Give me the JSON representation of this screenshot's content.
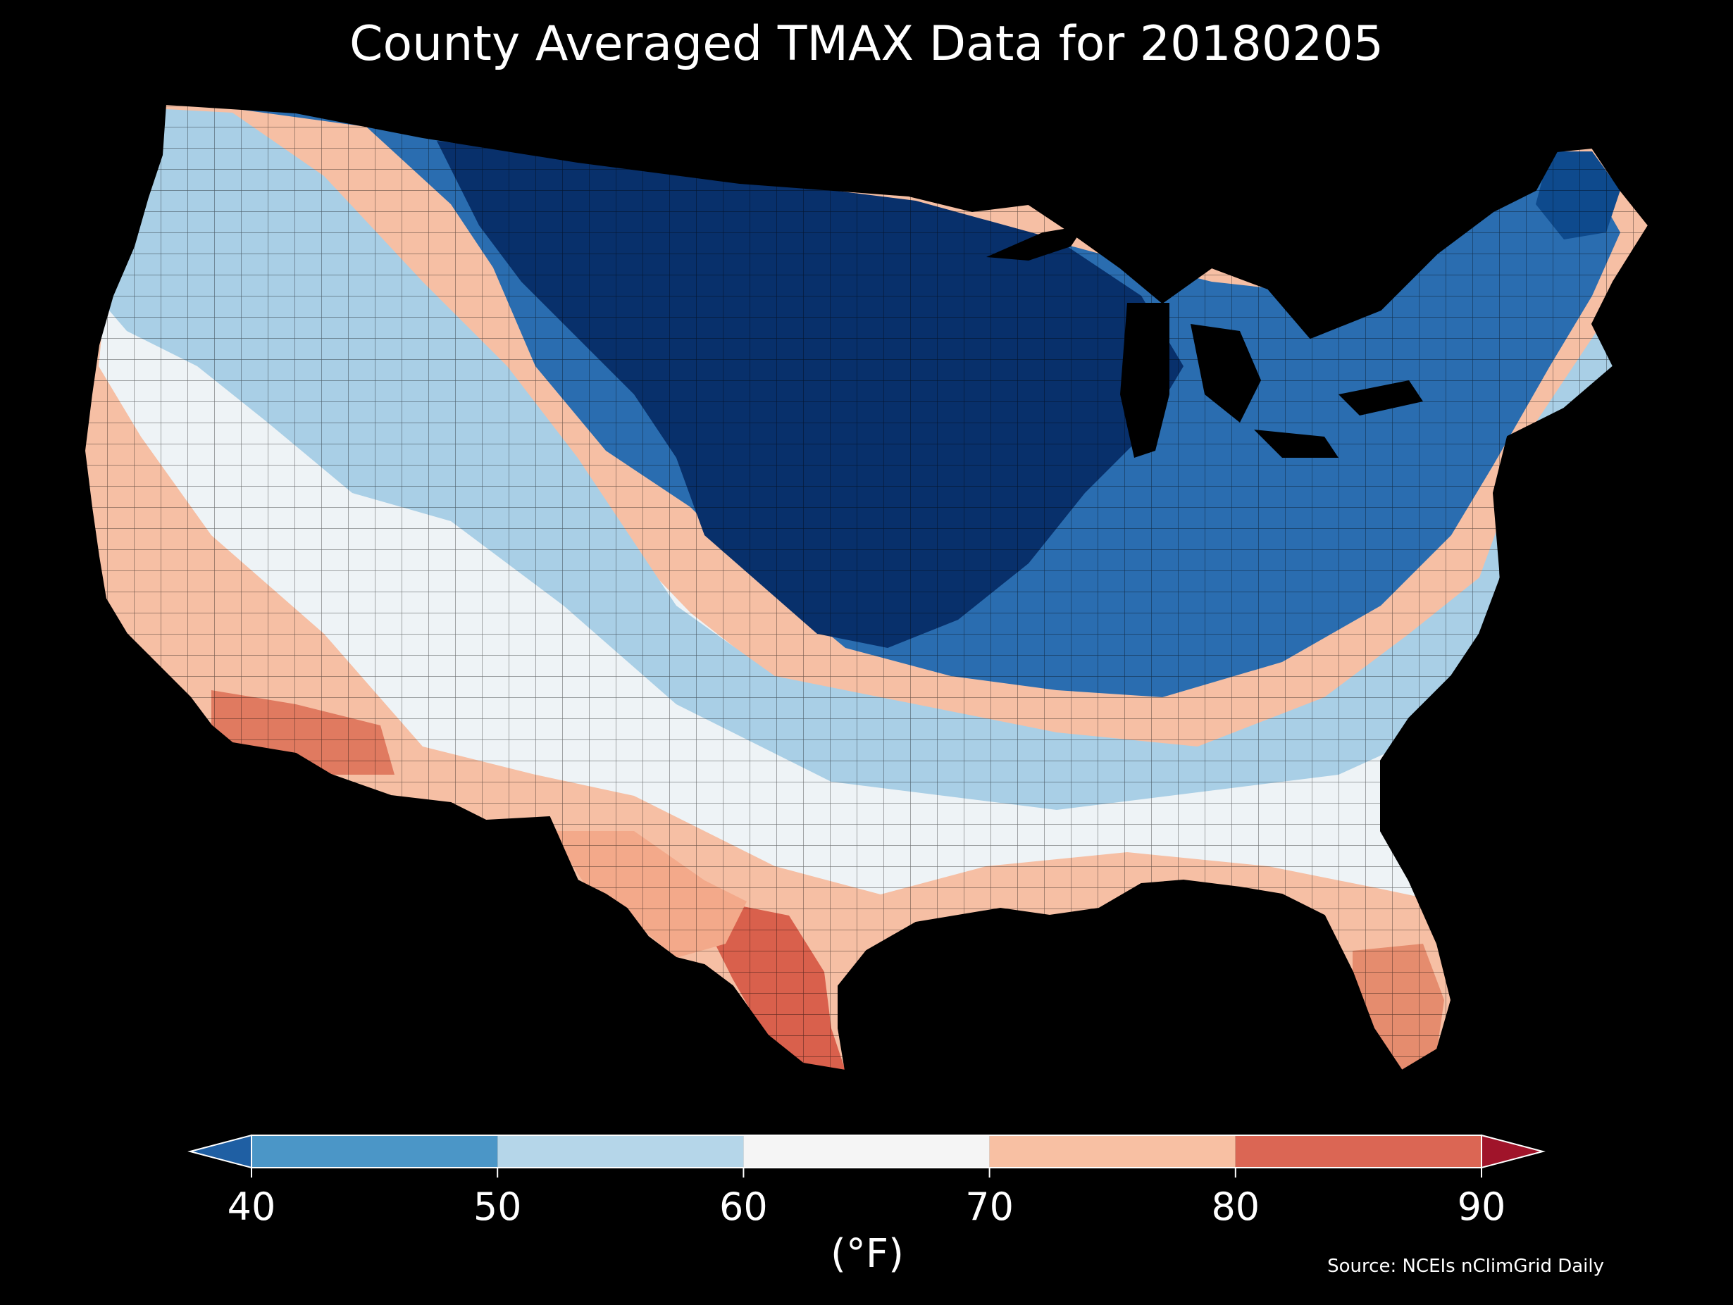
{
  "title": "County Averaged TMAX Data for 20180205",
  "source": "Source: NCEIs nClimGrid Daily",
  "colorbar": {
    "unit_label": "(°F)",
    "ticks": [
      "40",
      "50",
      "60",
      "70",
      "80",
      "90"
    ],
    "extend": "both",
    "under_color": "#1f5fa3",
    "over_color": "#a0142a",
    "bins": [
      {
        "from": 40,
        "to": 50,
        "color": "#4b96c7"
      },
      {
        "from": 50,
        "to": 60,
        "color": "#b5d6e9"
      },
      {
        "from": 60,
        "to": 70,
        "color": "#f5f5f5"
      },
      {
        "from": 70,
        "to": 80,
        "color": "#f8c0a3"
      },
      {
        "from": 80,
        "to": 90,
        "color": "#db6654"
      }
    ]
  },
  "map": {
    "projection": "contiguous-us",
    "regions": [
      {
        "name": "northern-plains-upper-midwest",
        "range": "<40",
        "color": "#08306b"
      },
      {
        "name": "northern-rockies-northeast",
        "range": "40-50",
        "color": "#2a6db0"
      },
      {
        "name": "great-basin-mid-south",
        "range": "50-60",
        "color": "#a9cfe6"
      },
      {
        "name": "southwest-southeast",
        "range": "60-70",
        "color": "#eef3f6"
      },
      {
        "name": "california-gulf-coast",
        "range": "70-80",
        "color": "#f6bfa4"
      },
      {
        "name": "south-texas-arizona-florida",
        "range": "80-90",
        "color": "#d9604c"
      }
    ]
  }
}
